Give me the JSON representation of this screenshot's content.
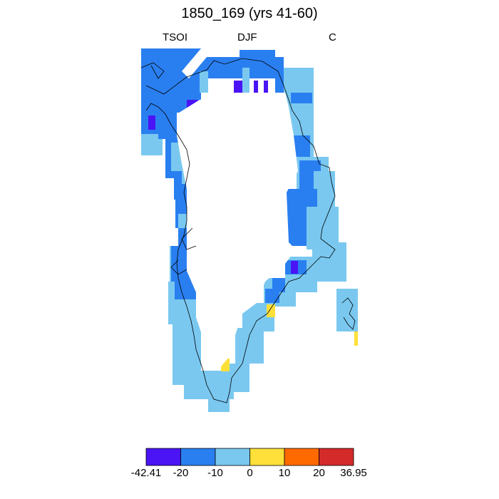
{
  "title": "1850_169 (yrs 41-60)",
  "subtitles": {
    "left": "TSOI",
    "center": "DJF",
    "right": "C"
  },
  "colorbar": {
    "colors": [
      "#4a14f5",
      "#2a7ff0",
      "#7ac8f0",
      "#ffe03a",
      "#ff6a00",
      "#d42a2a"
    ],
    "labels": [
      "-42.41",
      "-20",
      "-10",
      "0",
      "10",
      "20",
      "36.95"
    ]
  },
  "map": {
    "region": "Greenland",
    "colors": {
      "c1": "#4a14f5",
      "c2": "#2a7ff0",
      "c3": "#7ac8f0",
      "c4": "#ffe03a"
    }
  }
}
